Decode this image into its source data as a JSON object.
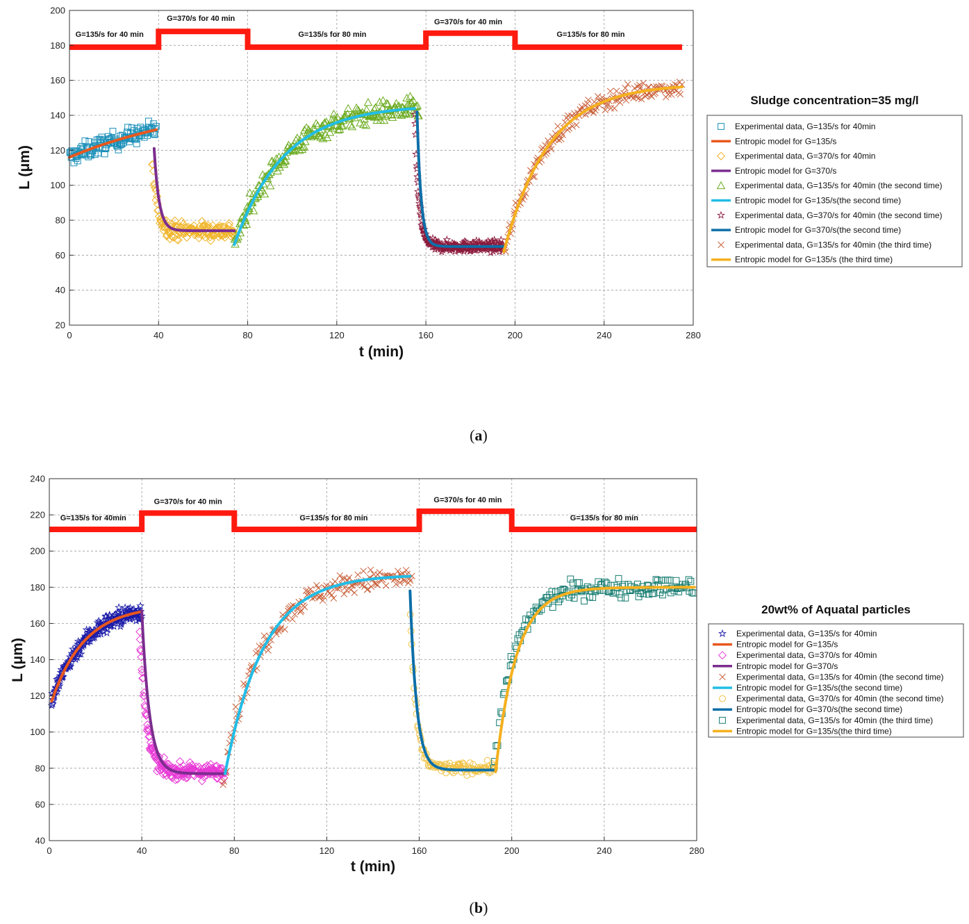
{
  "colors": {
    "regime": "#ff1a0f",
    "grid": "#9a9a9a"
  },
  "chart_data": [
    {
      "type": "scatter",
      "caption": "(a)",
      "xlabel": "t (min)",
      "ylabel": "L (μm)",
      "xlim": [
        0,
        280
      ],
      "ylim": [
        20,
        200
      ],
      "xticks": [
        0,
        40,
        80,
        120,
        160,
        200,
        240,
        280
      ],
      "yticks": [
        20,
        40,
        60,
        80,
        100,
        120,
        140,
        160,
        180,
        200
      ],
      "grid": true,
      "legend_position": "right",
      "legend_title": "Sludge concentration=35 mg/l",
      "regime_line": {
        "steps": [
          {
            "x0": 0,
            "x1": 40,
            "y": 179
          },
          {
            "x0": 40,
            "x1": 80,
            "y": 188
          },
          {
            "x0": 80,
            "x1": 160,
            "y": 179
          },
          {
            "x0": 160,
            "x1": 200,
            "y": 187
          },
          {
            "x0": 200,
            "x1": 275,
            "y": 179
          }
        ],
        "labels": [
          {
            "text": "G=135/s for 40 min",
            "x": 18,
            "y": 185
          },
          {
            "text": "G=370/s for 40 min",
            "x": 59,
            "y": 194
          },
          {
            "text": "G=135/s for 80 min",
            "x": 118,
            "y": 185
          },
          {
            "text": "G=370/s for 40 min",
            "x": 179,
            "y": 192
          },
          {
            "text": "G=135/s for 80 min",
            "x": 234,
            "y": 185
          }
        ]
      },
      "series": [
        {
          "name": "Experimental data, G=135/s for 40min",
          "kind": "scatter",
          "marker": "square",
          "color": "#1a8fb8",
          "t_start": 0,
          "t_end": 39,
          "count": 130,
          "model": {
            "y0": 116,
            "yinf": 150,
            "k": 0.016
          },
          "noise": 5
        },
        {
          "name": "Entropic model for G=135/s",
          "kind": "line",
          "color": "#e8581e",
          "t_start": 0,
          "t_end": 39,
          "model": {
            "y0": 116,
            "yinf": 150,
            "k": 0.016
          }
        },
        {
          "name": "Experimental data, G=370/s for 40min",
          "kind": "scatter",
          "marker": "diamond",
          "color": "#f0b428",
          "t_start": 37,
          "t_end": 74,
          "count": 140,
          "model": {
            "y0": 118,
            "yinf": 74,
            "k": 0.45
          },
          "noise": 5
        },
        {
          "name": "Entropic model for G=370/s",
          "kind": "line",
          "color": "#7b2d8e",
          "t_start": 38,
          "t_end": 74,
          "model": {
            "y0": 121,
            "yinf": 74,
            "k": 0.45
          }
        },
        {
          "name": "Experimental data, G=135/s for 40min (the second time)",
          "kind": "scatter",
          "marker": "triangle",
          "color": "#6aaa1e",
          "t_start": 74,
          "t_end": 157,
          "count": 230,
          "model": {
            "y0": 66,
            "yinf": 146,
            "k": 0.045
          },
          "noise": 6
        },
        {
          "name": "Entropic model for G=135/s(the second time)",
          "kind": "line",
          "color": "#22bde6",
          "t_start": 74,
          "t_end": 155,
          "model": {
            "y0": 66,
            "yinf": 146,
            "k": 0.045
          }
        },
        {
          "name": "Experimental data, G=370/s for 40min (the second time)",
          "kind": "scatter",
          "marker": "star",
          "color": "#8c1a3c",
          "t_start": 155,
          "t_end": 195,
          "count": 220,
          "model": {
            "y0": 140,
            "yinf": 65,
            "k": 0.55
          },
          "noise": 3
        },
        {
          "name": "Entropic model for G=370/s(the second time)",
          "kind": "line",
          "color": "#0d6fa8",
          "t_start": 156,
          "t_end": 195,
          "model": {
            "y0": 142,
            "yinf": 65,
            "k": 0.55
          }
        },
        {
          "name": "Experimental data, G=135/s for 40min (the third time)",
          "kind": "scatter",
          "marker": "x",
          "color": "#c9603a",
          "t_start": 195,
          "t_end": 275,
          "count": 170,
          "model": {
            "y0": 62,
            "yinf": 158,
            "k": 0.05
          },
          "noise": 5
        },
        {
          "name": "Entropic model for G=135/s (the third time)",
          "kind": "line",
          "color": "#f5b01e",
          "t_start": 195,
          "t_end": 275,
          "model": {
            "y0": 62,
            "yinf": 158,
            "k": 0.05
          }
        }
      ]
    },
    {
      "type": "scatter",
      "caption": "(b)",
      "xlabel": "t (min)",
      "ylabel": "L (μm)",
      "xlim": [
        0,
        280
      ],
      "ylim": [
        40,
        240
      ],
      "xticks": [
        0,
        40,
        80,
        120,
        160,
        200,
        240,
        280
      ],
      "yticks": [
        40,
        60,
        80,
        100,
        120,
        140,
        160,
        180,
        200,
        220,
        240
      ],
      "grid": true,
      "legend_position": "right",
      "legend_title": "20wt% of Aquatal particles",
      "regime_line": {
        "steps": [
          {
            "x0": 0,
            "x1": 40,
            "y": 212
          },
          {
            "x0": 40,
            "x1": 80,
            "y": 221
          },
          {
            "x0": 80,
            "x1": 160,
            "y": 212
          },
          {
            "x0": 160,
            "x1": 200,
            "y": 222
          },
          {
            "x0": 200,
            "x1": 280,
            "y": 212
          }
        ],
        "labels": [
          {
            "text": "G=135/s for 40min",
            "x": 19,
            "y": 217
          },
          {
            "text": "G=370/s for 40 min",
            "x": 60,
            "y": 226
          },
          {
            "text": "G=135/s for 80 min",
            "x": 123,
            "y": 217
          },
          {
            "text": "G=370/s for 40 min",
            "x": 181,
            "y": 227
          },
          {
            "text": "G=135/s for 80 min",
            "x": 240,
            "y": 217
          }
        ]
      },
      "series": [
        {
          "name": "Experimental data, G=135/s for 40min",
          "kind": "scatter",
          "marker": "star",
          "color": "#1a1aa8",
          "t_start": 1,
          "t_end": 40,
          "count": 220,
          "model": {
            "y0": 117,
            "yinf": 170,
            "k": 0.07
          },
          "noise": 5
        },
        {
          "name": "Entropic model for G=135/s",
          "kind": "line",
          "color": "#e8581e",
          "t_start": 1,
          "t_end": 40,
          "model": {
            "y0": 117,
            "yinf": 170,
            "k": 0.07
          }
        },
        {
          "name": "Experimental data, G=370/s for 40min",
          "kind": "scatter",
          "marker": "diamond",
          "color": "#e83ad6",
          "t_start": 39,
          "t_end": 76,
          "count": 200,
          "model": {
            "y0": 160,
            "yinf": 78,
            "k": 0.35
          },
          "noise": 4
        },
        {
          "name": "Entropic model for G=370/s",
          "kind": "line",
          "color": "#7b2d8e",
          "t_start": 40,
          "t_end": 76,
          "model": {
            "y0": 167,
            "yinf": 77,
            "k": 0.3
          }
        },
        {
          "name": "Experimental data, G=135/s for 40min (the second time)",
          "kind": "scatter",
          "marker": "x",
          "color": "#c9603a",
          "t_start": 75,
          "t_end": 157,
          "count": 170,
          "model": {
            "y0": 75,
            "yinf": 186,
            "k": 0.06
          },
          "noise": 6
        },
        {
          "name": "Entropic model for G=135/s(the second time)",
          "kind": "line",
          "color": "#22bde6",
          "t_start": 76,
          "t_end": 156,
          "model": {
            "y0": 77,
            "yinf": 187,
            "k": 0.06
          }
        },
        {
          "name": "Experimental data, G=370/s for 40min (the second time)",
          "kind": "scatter",
          "marker": "circle",
          "color": "#f0c040",
          "t_start": 156,
          "t_end": 193,
          "count": 110,
          "model": {
            "y0": 170,
            "yinf": 80,
            "k": 0.4
          },
          "noise": 3
        },
        {
          "name": "Entropic model for G=370/s(the second time)",
          "kind": "line",
          "color": "#0d6fa8",
          "t_start": 156,
          "t_end": 193,
          "model": {
            "y0": 178,
            "yinf": 79,
            "k": 0.35
          }
        },
        {
          "name": "Experimental data, G=135/s for 40min (the third time)",
          "kind": "scatter",
          "marker": "square",
          "color": "#127a6e",
          "t_start": 192,
          "t_end": 279,
          "count": 150,
          "model": {
            "y0": 78,
            "yinf": 180,
            "k": 0.11
          },
          "noise": 5
        },
        {
          "name": "Entropic model for G=135/s(the third time)",
          "kind": "line",
          "color": "#f5b01e",
          "t_start": 193,
          "t_end": 279,
          "model": {
            "y0": 78,
            "yinf": 180,
            "k": 0.11
          }
        }
      ]
    }
  ]
}
